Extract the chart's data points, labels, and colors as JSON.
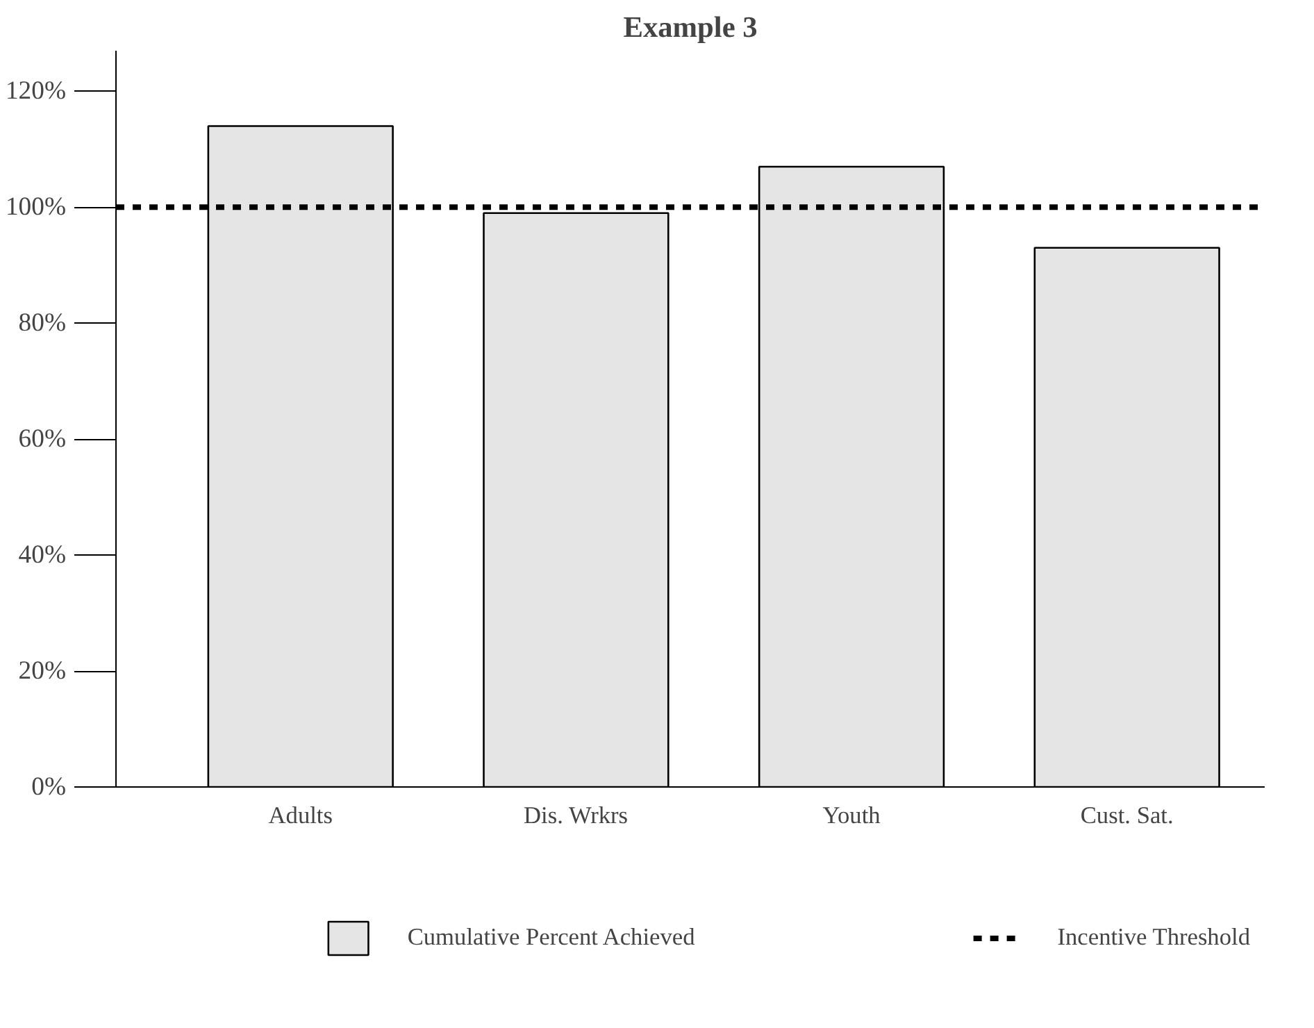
{
  "chart_data": {
    "type": "bar",
    "title": "Example 3",
    "categories": [
      "Adults",
      "Dis. Wrkrs",
      "Youth",
      "Cust. Sat."
    ],
    "series": [
      {
        "name": "Cumulative Percent Achieved",
        "color": "#e5e5e5",
        "values": [
          114,
          99,
          107,
          93
        ]
      }
    ],
    "ylim": [
      0,
      127
    ],
    "yticks": [
      {
        "value": 0,
        "label": "0%"
      },
      {
        "value": 20,
        "label": "20%"
      },
      {
        "value": 40,
        "label": "40%"
      },
      {
        "value": 60,
        "label": "60%"
      },
      {
        "value": 80,
        "label": "80%"
      },
      {
        "value": 100,
        "label": "100%"
      },
      {
        "value": 120,
        "label": "120%"
      }
    ],
    "ref_lines": [
      {
        "axis": "y",
        "value": 100,
        "label": "Incentive Threshold",
        "color": "#000000",
        "line_style": "dashed"
      }
    ],
    "grid": false,
    "legend": "bottom"
  }
}
